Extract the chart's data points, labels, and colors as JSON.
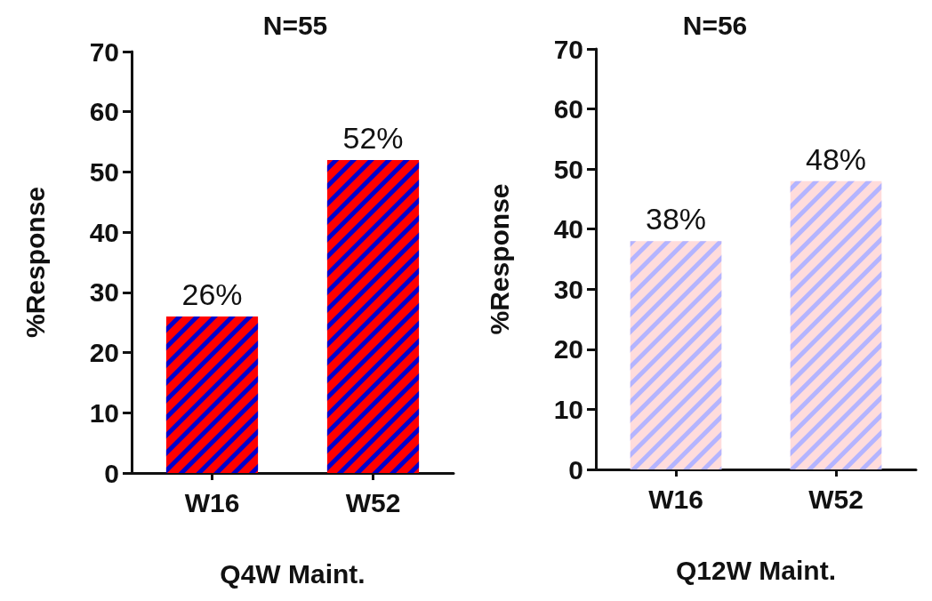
{
  "chart_data": [
    {
      "type": "bar",
      "title": "N=55",
      "xlabel": "Q4W Maint.",
      "ylabel": "%Response",
      "categories": [
        "W16",
        "W52"
      ],
      "series": [
        {
          "color": "#ff0000",
          "values": [
            26,
            52
          ],
          "value_labels": [
            "26%",
            "52%"
          ]
        }
      ],
      "ylim": [
        0,
        70
      ],
      "yticks": [
        0,
        10,
        20,
        30,
        40,
        50,
        60,
        70
      ],
      "grid": false
    },
    {
      "type": "bar",
      "title": "N=56",
      "xlabel": "Q12W Maint.",
      "ylabel": "%Response",
      "categories": [
        "W16",
        "W52"
      ],
      "series": [
        {
          "color": "#ffdcdc",
          "values": [
            38,
            48
          ],
          "value_labels": [
            "38%",
            "48%"
          ]
        }
      ],
      "ylim": [
        0,
        70
      ],
      "yticks": [
        0,
        10,
        20,
        30,
        40,
        50,
        60,
        70
      ],
      "grid": false
    }
  ]
}
